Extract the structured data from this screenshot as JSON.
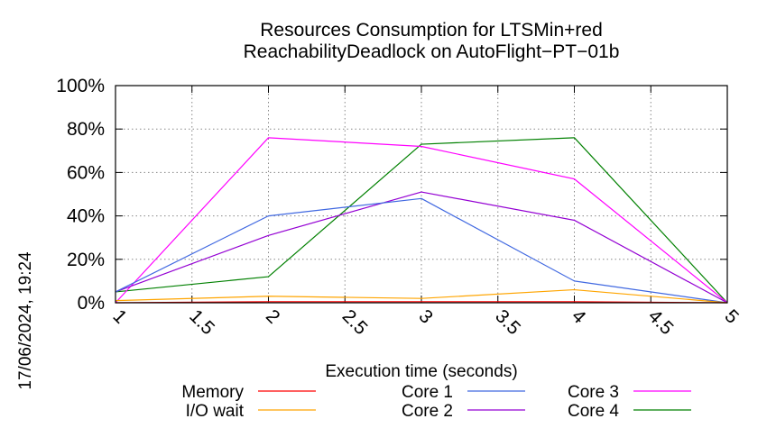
{
  "chart_data": {
    "type": "line",
    "title": [
      "Resources Consumption for LTSMin+red",
      "ReachabilityDeadlock on AutoFlight−PT−01b"
    ],
    "xlabel": "Execution time (seconds)",
    "ylabel": "",
    "xlim": [
      1,
      5
    ],
    "ylim": [
      0,
      100
    ],
    "xticks": [
      "1",
      "1.5",
      "2",
      "2.5",
      "3",
      "3.5",
      "4",
      "4.5",
      "5"
    ],
    "yticks": [
      "0%",
      "20%",
      "40%",
      "60%",
      "80%",
      "100%"
    ],
    "grid": true,
    "timestamp": "17/06/2024, 19:24",
    "x": [
      1,
      2,
      3,
      4,
      5
    ],
    "series": [
      {
        "name": "Memory",
        "color": "#ff0000",
        "values": [
          0,
          0.5,
          0.5,
          0.5,
          0
        ]
      },
      {
        "name": "I/O wait",
        "color": "#ffa500",
        "values": [
          1,
          3,
          2,
          6,
          0
        ]
      },
      {
        "name": "Core 1",
        "color": "#4169e1",
        "values": [
          5,
          40,
          48,
          10,
          0
        ]
      },
      {
        "name": "Core 2",
        "color": "#9400d3",
        "values": [
          5,
          31,
          51,
          38,
          0
        ]
      },
      {
        "name": "Core 3",
        "color": "#ff00ff",
        "values": [
          0,
          76,
          72,
          57,
          0
        ]
      },
      {
        "name": "Core 4",
        "color": "#008000",
        "values": [
          5,
          12,
          73,
          76,
          0
        ]
      }
    ],
    "legend_order": [
      "Memory",
      "I/O wait",
      "Core 1",
      "Core 2",
      "Core 3",
      "Core 4"
    ]
  }
}
